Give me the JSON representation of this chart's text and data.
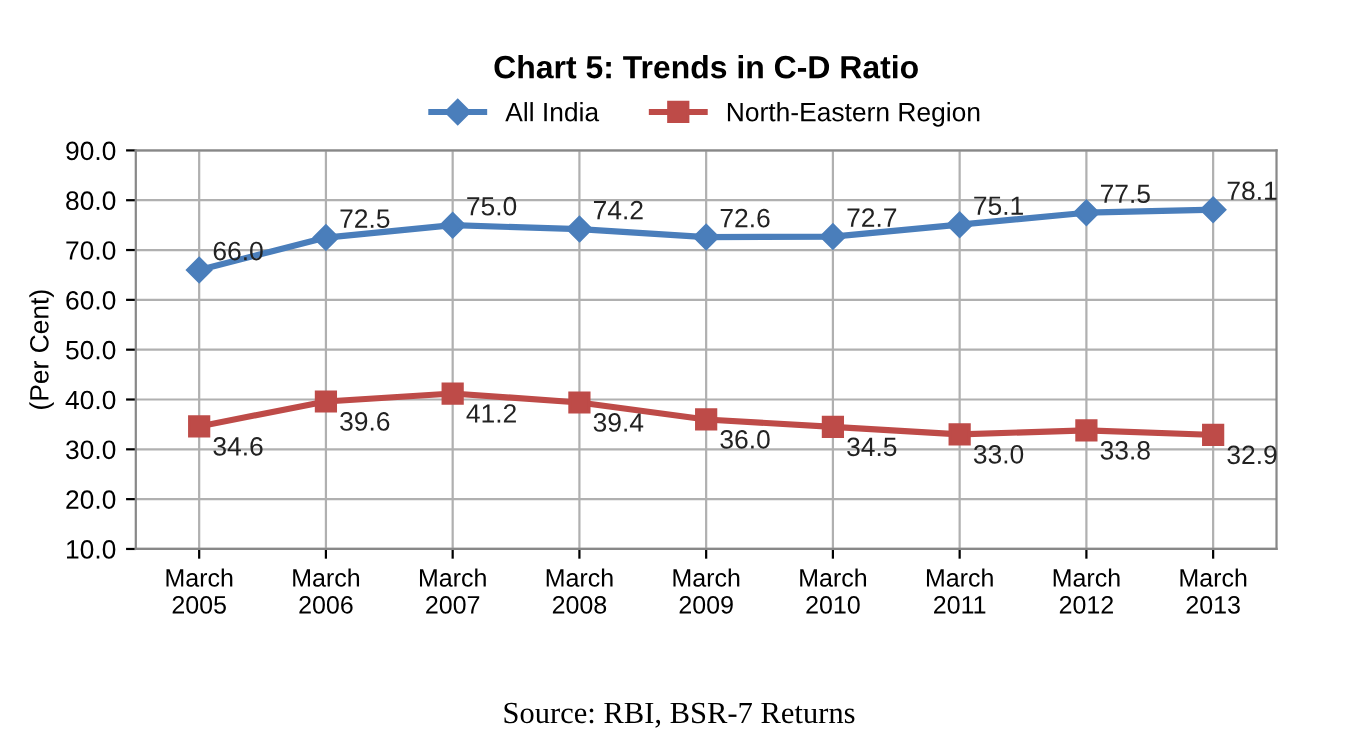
{
  "chart_data": {
    "type": "line",
    "title": "Chart 5: Trends in C-D Ratio",
    "ylabel": "(Per Cent)",
    "categories": [
      "March\n2005",
      "March\n2006",
      "March\n2007",
      "March\n2008",
      "March\n2009",
      "March\n2010",
      "March\n2011",
      "March\n2012",
      "March\n2013"
    ],
    "series": [
      {
        "name": "All India",
        "color": "#4a7ebb",
        "marker": "diamond",
        "values": [
          66.0,
          72.5,
          75.0,
          74.2,
          72.6,
          72.7,
          75.1,
          77.5,
          78.1
        ],
        "value_labels": [
          "66.0",
          "72.5",
          "75.0",
          "74.2",
          "72.6",
          "72.7",
          "75.1",
          "77.5",
          "78.1"
        ]
      },
      {
        "name": "North-Eastern Region",
        "color": "#be4b48",
        "marker": "square",
        "values": [
          34.6,
          39.6,
          41.2,
          39.4,
          36.0,
          34.5,
          33.0,
          33.8,
          32.9
        ],
        "value_labels": [
          "34.6",
          "39.6",
          "41.2",
          "39.4",
          "36.0",
          "34.5",
          "33.0",
          "33.8",
          "32.9"
        ]
      }
    ],
    "ylim": [
      10.0,
      90.0
    ],
    "yticks": [
      {
        "value": 10,
        "label": "10.0"
      },
      {
        "value": 20,
        "label": "20.0"
      },
      {
        "value": 30,
        "label": "30.0"
      },
      {
        "value": 40,
        "label": "40.0"
      },
      {
        "value": 50,
        "label": "50.0"
      },
      {
        "value": 60,
        "label": "60.0"
      },
      {
        "value": 70,
        "label": "70.0"
      },
      {
        "value": 80,
        "label": "80.0"
      },
      {
        "value": 90,
        "label": "90.0"
      }
    ],
    "grid": true,
    "legend": "top",
    "line_style": "solid",
    "annotations": [
      "Source: RBI, BSR-7 Returns"
    ]
  }
}
